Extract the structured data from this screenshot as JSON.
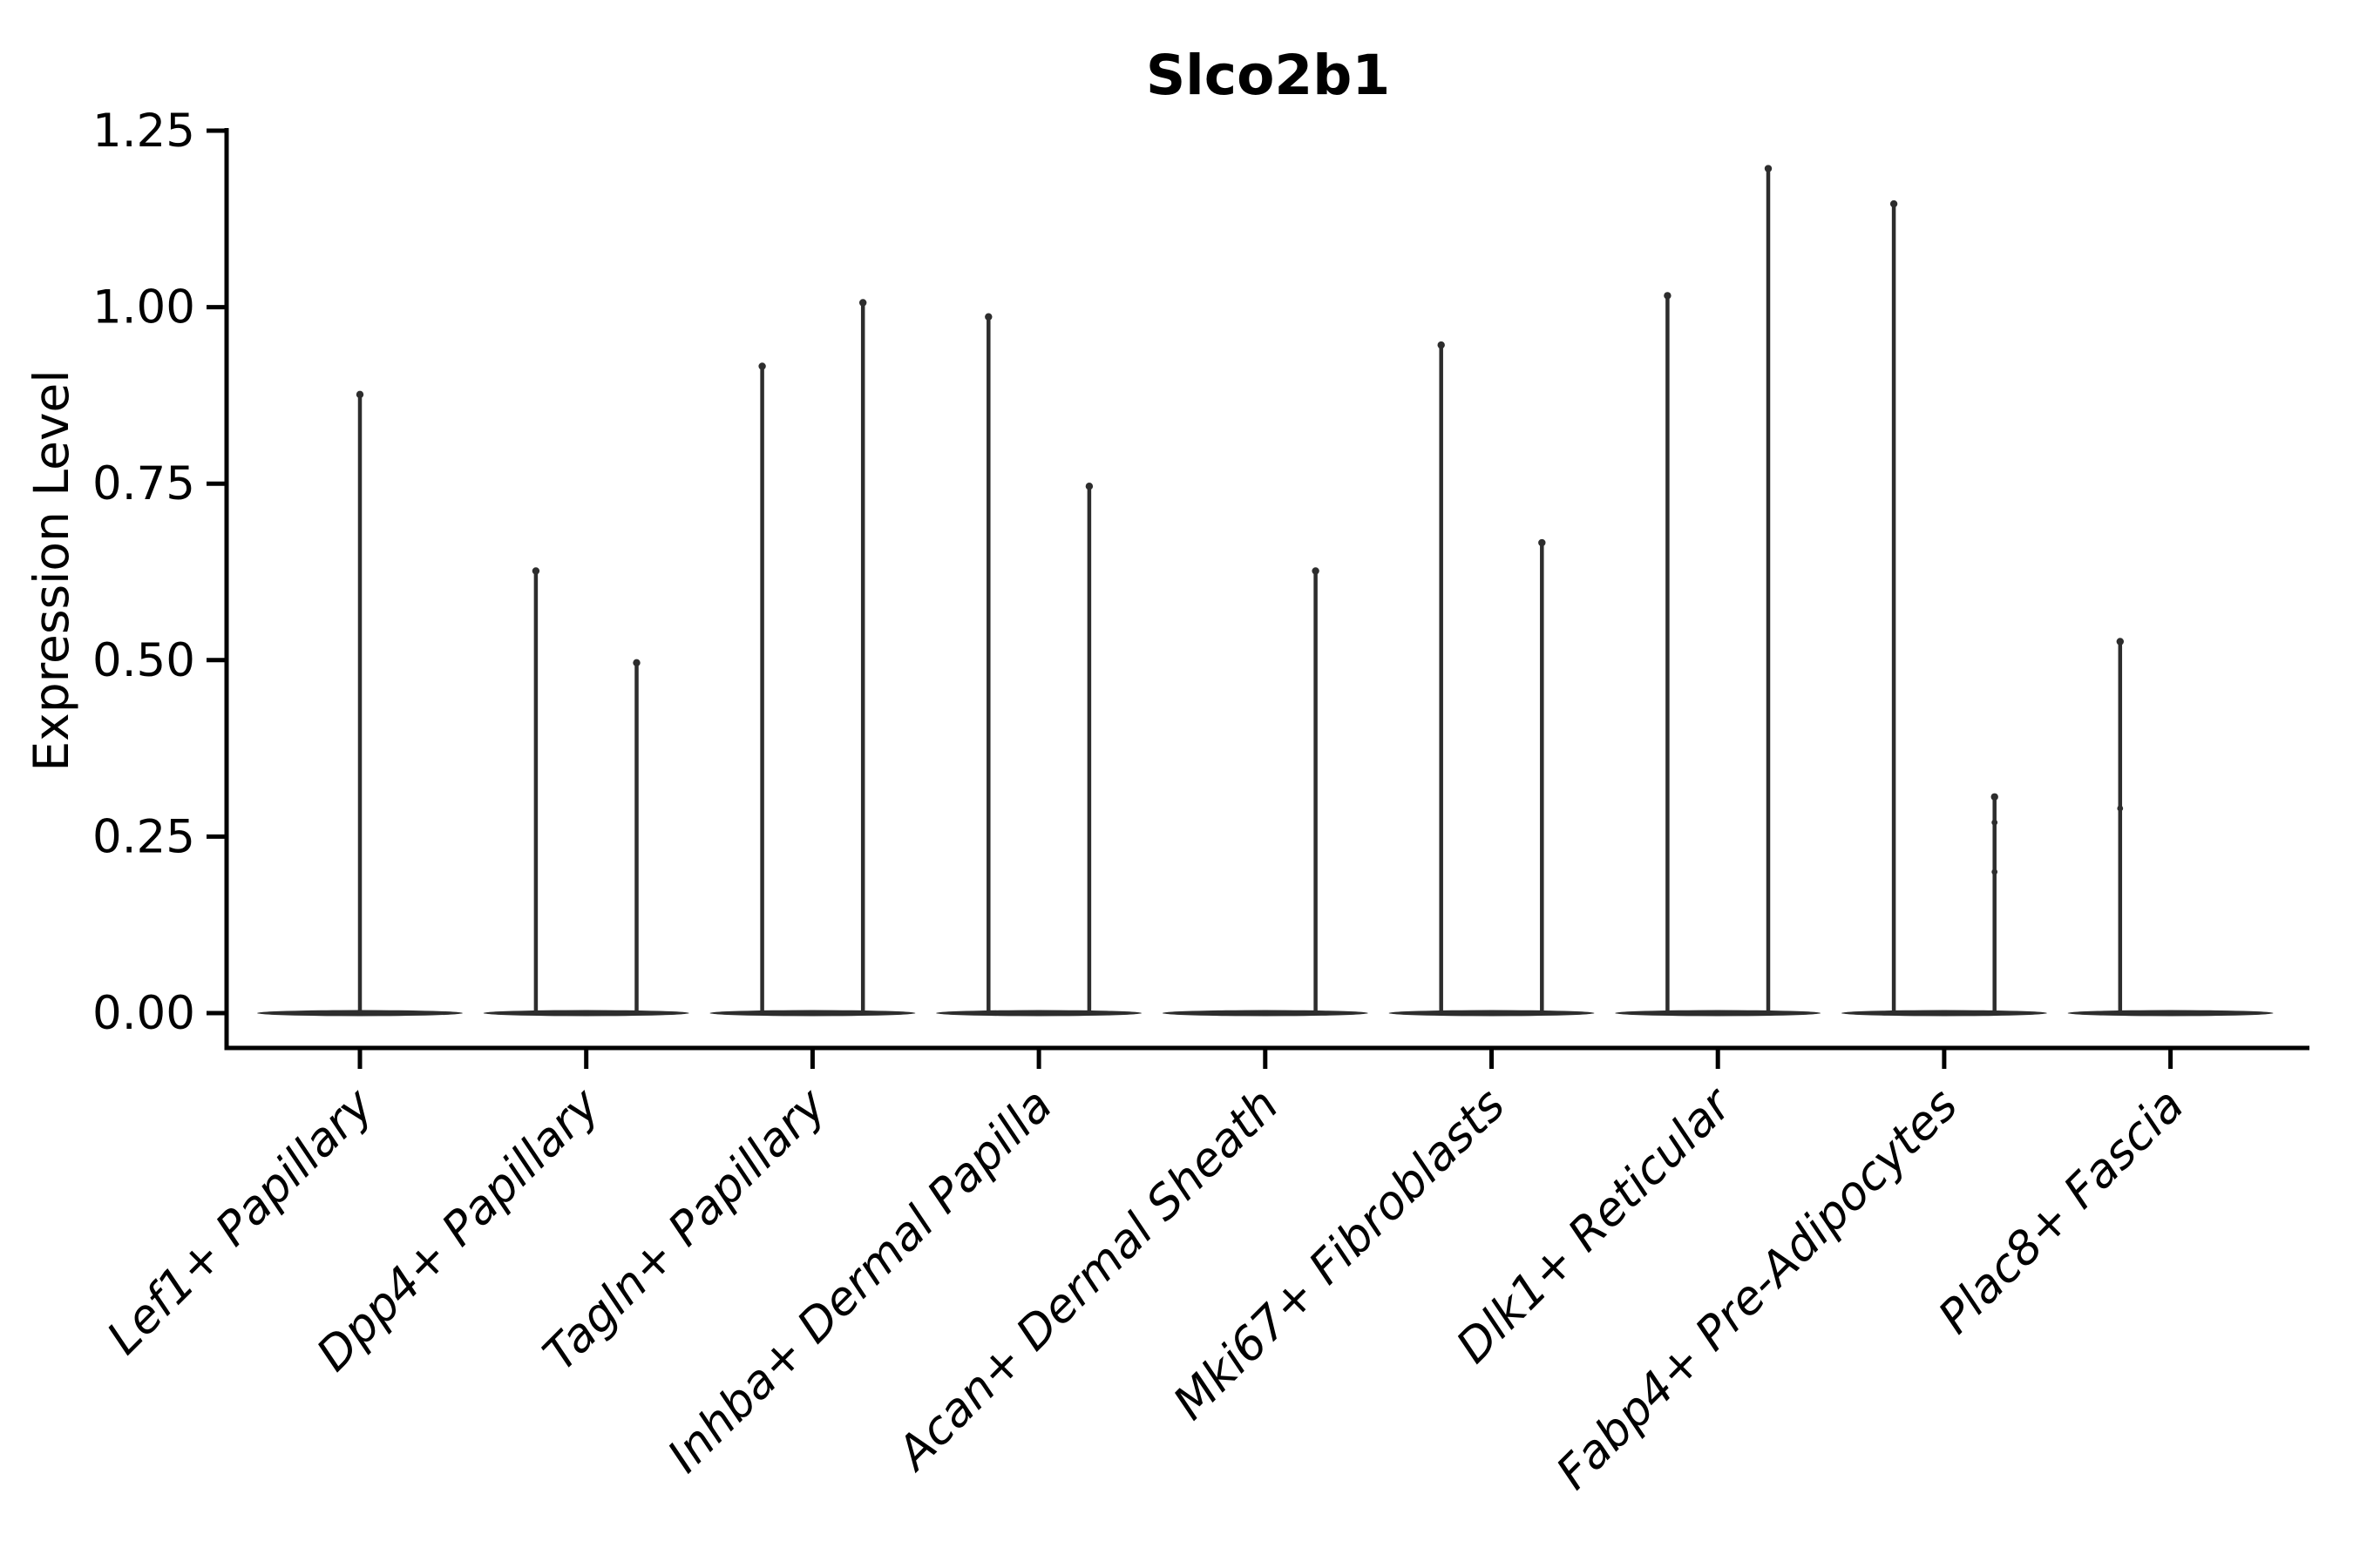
{
  "chart_data": {
    "type": "violin",
    "title": "Slco2b1",
    "ylabel": "Expression Level",
    "xlabel": "",
    "ylim": [
      0,
      1.25
    ],
    "grid": false,
    "legend": "none",
    "ytick_labels": [
      "0.00",
      "0.25",
      "0.50",
      "0.75",
      "1.00",
      "1.25"
    ],
    "ytick_values": [
      0,
      0.25,
      0.5,
      0.75,
      1.0,
      1.25
    ],
    "categories": [
      "Lef1+ Papillary",
      "Dpp4+ Papillary",
      "Tagln+ Papillary",
      "Inhba+ Dermal Papilla",
      "Acan+ Dermal Sheath",
      "Mki67+ Fibroblasts",
      "Dlk1+ Reticular",
      "Fabp4+ Pre-Adipocytes",
      "Plac8+ Fascia"
    ],
    "description": "Each category shows a flattened violin body at expression 0 (bulk of cells) with thin density spikes rising to the maximum expression value; several categories contain two side-by-side sub-violins.",
    "violins": [
      {
        "category": "Lef1+ Papillary",
        "zero_base": true,
        "spikes": [
          {
            "pos": "center",
            "max": 0.88
          }
        ]
      },
      {
        "category": "Dpp4+ Papillary",
        "zero_base": true,
        "spikes": [
          {
            "pos": "left",
            "max": 0.63
          },
          {
            "pos": "right",
            "max": 0.5
          }
        ]
      },
      {
        "category": "Tagln+ Papillary",
        "zero_base": true,
        "spikes": [
          {
            "pos": "left",
            "max": 0.92
          },
          {
            "pos": "right",
            "max": 1.01
          }
        ]
      },
      {
        "category": "Inhba+ Dermal Papilla",
        "zero_base": true,
        "spikes": [
          {
            "pos": "left",
            "max": 0.99
          },
          {
            "pos": "right",
            "max": 0.75
          }
        ]
      },
      {
        "category": "Acan+ Dermal Sheath",
        "zero_base": true,
        "spikes": [
          {
            "pos": "right",
            "max": 0.63
          }
        ]
      },
      {
        "category": "Mki67+ Fibroblasts",
        "zero_base": true,
        "spikes": [
          {
            "pos": "left",
            "max": 0.95
          },
          {
            "pos": "right",
            "max": 0.67
          }
        ]
      },
      {
        "category": "Dlk1+ Reticular",
        "zero_base": true,
        "spikes": [
          {
            "pos": "left",
            "max": 1.02
          },
          {
            "pos": "right",
            "max": 1.2
          }
        ]
      },
      {
        "category": "Fabp4+ Pre-Adipocytes",
        "zero_base": true,
        "spikes": [
          {
            "pos": "left",
            "max": 1.15
          },
          {
            "pos": "right",
            "max": 0.31,
            "bumps": [
              0.27,
              0.2
            ]
          }
        ]
      },
      {
        "category": "Plac8+ Fascia",
        "zero_base": true,
        "spikes": [
          {
            "pos": "left",
            "max": 0.53,
            "bumps": [
              0.29
            ]
          }
        ]
      }
    ],
    "colors": {
      "violin": "#2d2d2d",
      "axis": "#000000",
      "text": "#000000",
      "background": "#ffffff"
    }
  }
}
